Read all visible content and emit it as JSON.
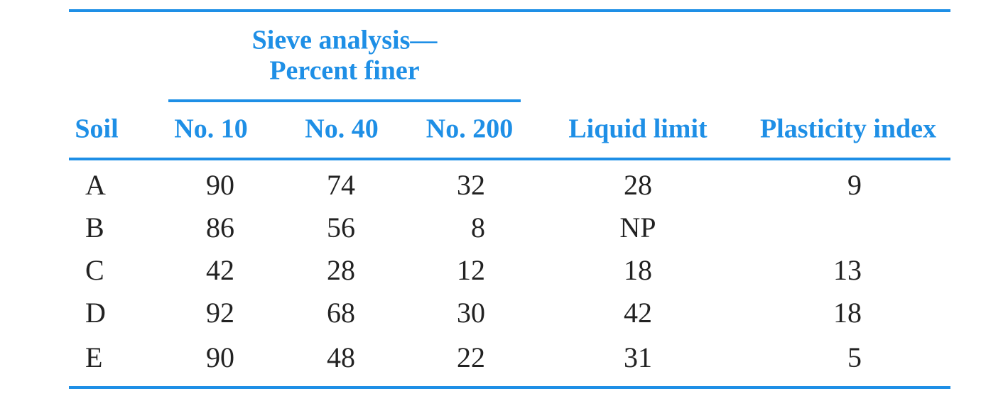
{
  "table": {
    "group_header": [
      "Sieve analysis—",
      "Percent finer"
    ],
    "columns": [
      "Soil",
      "No. 10",
      "No. 40",
      "No. 200",
      "Liquid limit",
      "Plasticity index"
    ],
    "rows": [
      [
        "A",
        90,
        74,
        32,
        28,
        9
      ],
      [
        "B",
        86,
        56,
        8,
        "NP",
        null
      ],
      [
        "C",
        42,
        28,
        12,
        18,
        13
      ],
      [
        "D",
        92,
        68,
        30,
        42,
        18
      ],
      [
        "E",
        90,
        48,
        22,
        31,
        5
      ]
    ]
  }
}
